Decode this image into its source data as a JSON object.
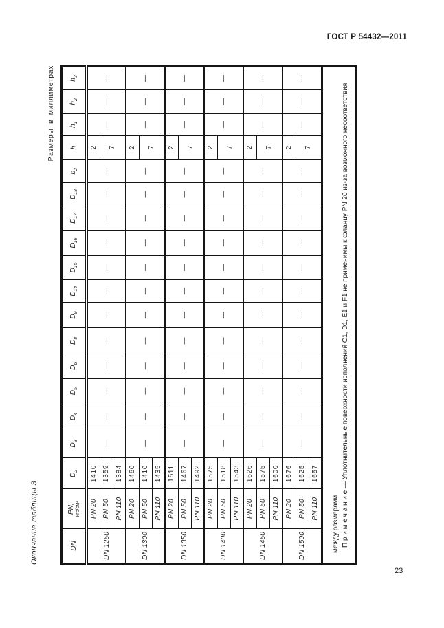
{
  "page": {
    "standard_ref": "ГОСТ Р 54432—2011",
    "page_number": "23",
    "table_caption": "Окончание таблицы 3",
    "units_caption": "Размеры в миллиметрах"
  },
  "table": {
    "columns": [
      {
        "label": "DN"
      },
      {
        "label": "PN,",
        "label2": "кгс/см²"
      },
      {
        "label": "D",
        "sub": "2"
      },
      {
        "label": "D",
        "sub": "3"
      },
      {
        "label": "D",
        "sub": "4"
      },
      {
        "label": "D",
        "sub": "5"
      },
      {
        "label": "D",
        "sub": "6"
      },
      {
        "label": "D",
        "sub": "8"
      },
      {
        "label": "D",
        "sub": "9"
      },
      {
        "label": "D",
        "sub": "14"
      },
      {
        "label": "D",
        "sub": "15"
      },
      {
        "label": "D",
        "sub": "16"
      },
      {
        "label": "D",
        "sub": "17"
      },
      {
        "label": "D",
        "sub": "18"
      },
      {
        "label": "b",
        "sub": "2"
      },
      {
        "label": "h"
      },
      {
        "label": "h",
        "sub": "1"
      },
      {
        "label": "h",
        "sub": "2"
      },
      {
        "label": "h",
        "sub": "3"
      }
    ],
    "dash": "—",
    "h_values": {
      "pn20": "2",
      "pn50_110": "7"
    },
    "groups": [
      {
        "dn": "DN 1250",
        "rows": [
          [
            "PN 20",
            "1410"
          ],
          [
            "PN 50",
            "1359"
          ],
          [
            "PN 110",
            "1384"
          ]
        ]
      },
      {
        "dn": "DN 1300",
        "rows": [
          [
            "PN 20",
            "1460"
          ],
          [
            "PN 50",
            "1410"
          ],
          [
            "PN 110",
            "1435"
          ]
        ]
      },
      {
        "dn": "DN 1350",
        "rows": [
          [
            "PN 20",
            "1511"
          ],
          [
            "PN 50",
            "1467"
          ],
          [
            "PN 110",
            "1492"
          ]
        ]
      },
      {
        "dn": "DN 1400",
        "rows": [
          [
            "PN 20",
            "1575"
          ],
          [
            "PN 50",
            "1518"
          ],
          [
            "PN 110",
            "1543"
          ]
        ]
      },
      {
        "dn": "DN 1450",
        "rows": [
          [
            "PN 20",
            "1626"
          ],
          [
            "PN 50",
            "1575"
          ],
          [
            "PN 110",
            "1600"
          ]
        ]
      },
      {
        "dn": "DN 1500",
        "rows": [
          [
            "PN 20",
            "1676"
          ],
          [
            "PN 50",
            "1625"
          ],
          [
            "PN 110",
            "1657"
          ]
        ]
      }
    ],
    "note": {
      "line_wrap": "между размерами",
      "line_main": "П р и м е ч а н и е  —  Уплотнительные  поверхности  исполнений  C1,  D1,  E1  и  F1  не  применимы  к  фланцу  PN 20  из-за  возможного  несоответствия"
    }
  }
}
